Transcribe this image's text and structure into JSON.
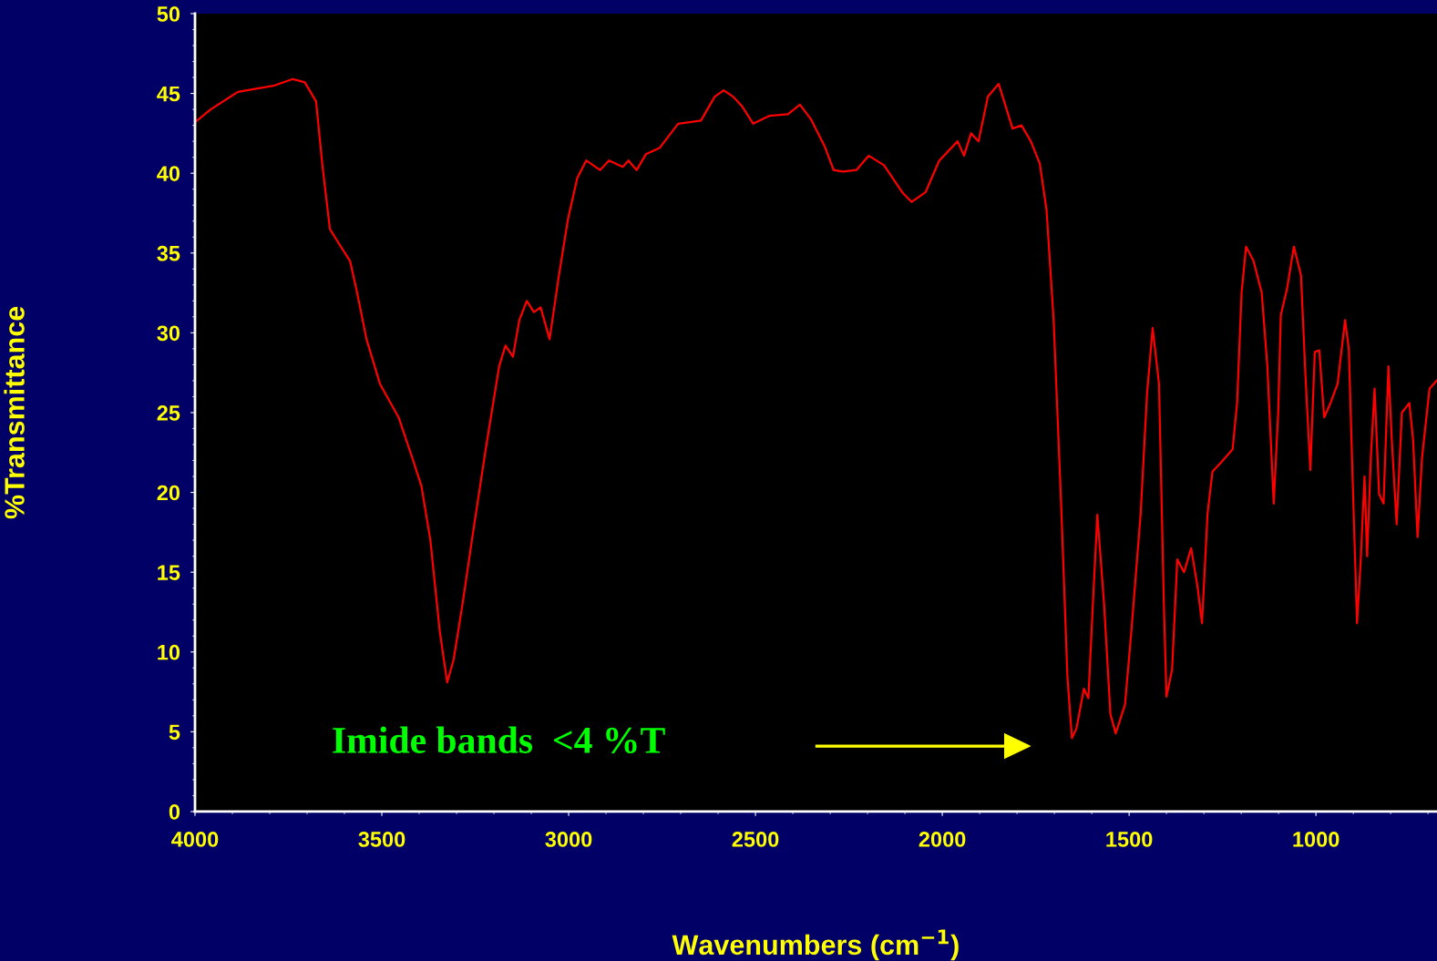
{
  "chart_data": {
    "type": "line",
    "xlabel": "Wavenumbers (cm$^{−1}$)",
    "ylabel": "%Transmittance",
    "annotations": [
      "Imide bands  <4 %T"
    ],
    "xlim": [
      4000,
      676
    ],
    "xticks": [
      4000,
      3500,
      3000,
      2500,
      2000,
      1500,
      1000
    ],
    "ylim": [
      0,
      50
    ],
    "yticks": [
      0,
      5,
      10,
      15,
      20,
      25,
      30,
      35,
      40,
      45,
      50
    ],
    "grid": false,
    "marker": "none",
    "line_style": "solid",
    "series": [
      {
        "color": "#ff0000",
        "x": [
          4000,
          3958,
          3885,
          3787,
          3738,
          3706,
          3676,
          3659,
          3639,
          3615,
          3585,
          3566,
          3541,
          3505,
          3455,
          3419,
          3394,
          3370,
          3345,
          3325,
          3308,
          3284,
          3259,
          3222,
          3186,
          3169,
          3149,
          3132,
          3112,
          3093,
          3075,
          3051,
          3026,
          3002,
          2977,
          2953,
          2916,
          2892,
          2855,
          2840,
          2818,
          2793,
          2756,
          2707,
          2646,
          2609,
          2585,
          2560,
          2536,
          2506,
          2462,
          2413,
          2381,
          2352,
          2315,
          2291,
          2266,
          2230,
          2197,
          2156,
          2107,
          2082,
          2045,
          2008,
          1959,
          1942,
          1923,
          1903,
          1878,
          1849,
          1812,
          1788,
          1763,
          1739,
          1721,
          1702,
          1682,
          1665,
          1653,
          1641,
          1621,
          1609,
          1597,
          1585,
          1567,
          1550,
          1536,
          1511,
          1494,
          1469,
          1452,
          1437,
          1420,
          1407,
          1400,
          1385,
          1371,
          1353,
          1334,
          1317,
          1305,
          1290,
          1277,
          1253,
          1223,
          1211,
          1199,
          1187,
          1167,
          1145,
          1130,
          1113,
          1101,
          1094,
          1077,
          1059,
          1040,
          1028,
          1015,
          1003,
          991,
          978,
          961,
          942,
          922,
          912,
          902,
          890,
          880,
          870,
          863,
          853,
          843,
          831,
          819,
          806,
          797,
          784,
          770,
          750,
          740,
          728,
          716,
          696,
          677
        ],
        "values": [
          43.2,
          44.0,
          45.1,
          45.5,
          45.9,
          45.7,
          44.5,
          40.5,
          36.5,
          35.6,
          34.5,
          32.5,
          29.6,
          26.8,
          24.7,
          22.2,
          20.4,
          17.0,
          11.3,
          8.1,
          9.5,
          13.0,
          17.0,
          22.7,
          27.9,
          29.2,
          28.5,
          30.8,
          32.0,
          31.3,
          31.6,
          29.6,
          33.6,
          37.1,
          39.7,
          40.8,
          40.2,
          40.8,
          40.4,
          40.8,
          40.2,
          41.2,
          41.6,
          43.1,
          43.3,
          44.8,
          45.2,
          44.8,
          44.2,
          43.1,
          43.6,
          43.7,
          44.3,
          43.4,
          41.7,
          40.2,
          40.1,
          40.2,
          41.1,
          40.5,
          38.8,
          38.2,
          38.8,
          40.8,
          42.0,
          41.1,
          42.5,
          42.0,
          44.8,
          45.6,
          42.8,
          43.0,
          42.0,
          40.6,
          37.7,
          30.8,
          19.3,
          8.4,
          4.6,
          5.2,
          7.7,
          7.1,
          13.0,
          18.6,
          13.0,
          6.1,
          4.9,
          6.7,
          11.3,
          18.7,
          26.2,
          30.3,
          26.8,
          13.0,
          7.2,
          8.9,
          15.8,
          15.0,
          16.5,
          14.1,
          11.8,
          18.7,
          21.3,
          21.9,
          22.7,
          25.6,
          32.5,
          35.4,
          34.5,
          32.5,
          27.9,
          19.3,
          25.0,
          31.1,
          32.8,
          35.4,
          33.6,
          27.3,
          21.4,
          28.8,
          28.9,
          24.7,
          25.6,
          26.8,
          30.8,
          29.0,
          21.0,
          11.8,
          15.8,
          21.0,
          16.0,
          22.2,
          26.5,
          19.9,
          19.3,
          27.9,
          23.3,
          18.0,
          25.0,
          25.6,
          23.3,
          17.2,
          22.2,
          26.5,
          27.0
        ]
      }
    ]
  }
}
